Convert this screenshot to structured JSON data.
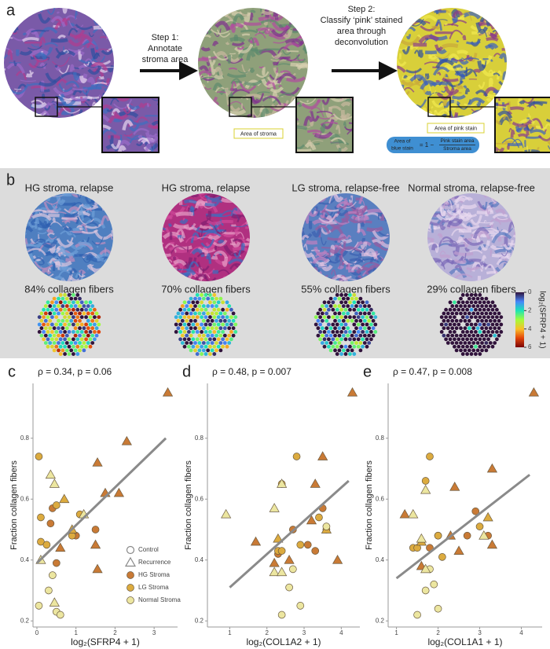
{
  "panel_a": {
    "label": "a",
    "step1": [
      "Step 1:",
      "Annotate",
      "stroma area"
    ],
    "step2": [
      "Step 2:",
      "Classify ‘pink’ stained",
      "area through",
      "deconvolution"
    ],
    "stroma_label": "Area of stroma",
    "pink_label": "Area of pink stain",
    "formula": {
      "lhs": [
        "Area of",
        "blue stain"
      ],
      "eq": "= 1 −",
      "numerator": "Pink stain area",
      "denominator": "Stroma area"
    }
  },
  "panel_b": {
    "label": "b",
    "titles": [
      "HG stroma, relapse",
      "HG stroma, relapse",
      "LG stroma, relapse-free",
      "Normal stroma, relapse-free"
    ],
    "fractions": [
      "84% collagen fibers",
      "70% collagen fibers",
      "55% collagen fibers",
      "29% collagen fibers"
    ],
    "colorbar": {
      "label": "log₂(SFRP4 + 1)",
      "lim": [
        0,
        6
      ],
      "ticks": [
        0,
        2,
        4,
        6
      ]
    }
  },
  "chart_data": [
    {
      "type": "scatter",
      "panel": "c",
      "annotation": "ρ = 0.34, p = 0.06",
      "x_label": "log₂(SFRP4 + 1)",
      "y_label": "Fraction collagen fibers",
      "xlim": [
        -0.1,
        3.6
      ],
      "xticks": [
        0,
        1,
        2,
        3
      ],
      "ylim": [
        0.18,
        0.98
      ],
      "yticks": [
        0.2,
        0.4,
        0.6,
        0.8
      ],
      "legend": true,
      "marker_legend": [
        {
          "name": "Control",
          "marker": "circle"
        },
        {
          "name": "Recurrence",
          "marker": "triangle"
        }
      ],
      "series": [
        {
          "name": "HG Stroma",
          "color": "#c97a35",
          "x": [
            0.4,
            0.35,
            0.5,
            1.0,
            1.5,
            3.35,
            2.3,
            1.55,
            1.75,
            2.1,
            1.5,
            1.55,
            0.6
          ],
          "y": [
            0.57,
            0.52,
            0.39,
            0.48,
            0.5,
            0.95,
            0.79,
            0.72,
            0.62,
            0.62,
            0.45,
            0.37,
            0.44
          ],
          "markers": [
            "circle",
            "circle",
            "circle",
            "circle",
            "circle",
            "triangle",
            "triangle",
            "triangle",
            "triangle",
            "triangle",
            "triangle",
            "triangle",
            "triangle"
          ]
        },
        {
          "name": "LG Stroma",
          "color": "#dcab3f",
          "x": [
            0.05,
            0.1,
            0.1,
            0.5,
            0.25,
            1.1,
            0.9,
            0.7,
            0.9
          ],
          "y": [
            0.74,
            0.54,
            0.46,
            0.58,
            0.45,
            0.55,
            0.48,
            0.6,
            0.5
          ],
          "markers": [
            "circle",
            "circle",
            "circle",
            "circle",
            "circle",
            "circle",
            "circle",
            "triangle",
            "triangle"
          ]
        },
        {
          "name": "Normal Stroma",
          "color": "#ece6a0",
          "x": [
            0.05,
            0.3,
            0.4,
            0.5,
            0.6,
            0.35,
            0.45,
            0.1,
            0.45,
            1.2
          ],
          "y": [
            0.25,
            0.3,
            0.35,
            0.23,
            0.22,
            0.68,
            0.65,
            0.4,
            0.26,
            0.55
          ],
          "markers": [
            "circle",
            "circle",
            "circle",
            "circle",
            "circle",
            "triangle",
            "triangle",
            "triangle",
            "triangle",
            "triangle"
          ]
        }
      ],
      "fit_line": {
        "x": [
          0,
          3.3
        ],
        "y": [
          0.39,
          0.8
        ],
        "color": "#8a8a8a"
      }
    },
    {
      "type": "scatter",
      "panel": "d",
      "annotation": "ρ = 0.48, p = 0.007",
      "x_label": "log₂(COL1A2 + 1)",
      "y_label": "Fraction collagen fibers",
      "xlim": [
        0.4,
        4.5
      ],
      "xticks": [
        1,
        2,
        3,
        4
      ],
      "ylim": [
        0.18,
        0.98
      ],
      "yticks": [
        0.2,
        0.4,
        0.6,
        0.8
      ],
      "legend": false,
      "series": [
        {
          "color": "#c97a35",
          "x": [
            2.7,
            3.1,
            3.5,
            3.3,
            2.3,
            4.3,
            3.5,
            3.3,
            3.2,
            1.7,
            2.6,
            3.9,
            2.2
          ],
          "y": [
            0.5,
            0.45,
            0.57,
            0.43,
            0.42,
            0.95,
            0.74,
            0.65,
            0.53,
            0.46,
            0.4,
            0.4,
            0.39
          ],
          "markers": [
            "circle",
            "circle",
            "circle",
            "circle",
            "circle",
            "triangle",
            "triangle",
            "triangle",
            "triangle",
            "triangle",
            "triangle",
            "triangle",
            "triangle"
          ]
        },
        {
          "color": "#dcab3f",
          "x": [
            2.8,
            2.4,
            2.3,
            2.4,
            3.4,
            3.6,
            2.9,
            3.6,
            2.3
          ],
          "y": [
            0.74,
            0.65,
            0.43,
            0.43,
            0.54,
            0.5,
            0.45,
            0.5,
            0.47
          ],
          "markers": [
            "circle",
            "circle",
            "circle",
            "circle",
            "circle",
            "circle",
            "circle",
            "triangle",
            "triangle"
          ]
        },
        {
          "color": "#ece6a0",
          "x": [
            2.9,
            2.4,
            2.6,
            3.6,
            2.7,
            2.4,
            2.2,
            0.9,
            2.2,
            2.4
          ],
          "y": [
            0.25,
            0.22,
            0.31,
            0.51,
            0.37,
            0.65,
            0.57,
            0.55,
            0.36,
            0.36
          ],
          "markers": [
            "circle",
            "circle",
            "circle",
            "circle",
            "circle",
            "triangle",
            "triangle",
            "triangle",
            "triangle",
            "triangle"
          ]
        }
      ],
      "fit_line": {
        "x": [
          1.0,
          4.2
        ],
        "y": [
          0.31,
          0.66
        ],
        "color": "#8a8a8a"
      }
    },
    {
      "type": "scatter",
      "panel": "e",
      "annotation": "ρ = 0.47, p = 0.008",
      "x_label": "log₂(COL1A1 + 1)",
      "y_label": "Fraction collagen fibers",
      "xlim": [
        0.8,
        4.5
      ],
      "xticks": [
        1,
        2,
        3,
        4
      ],
      "ylim": [
        0.18,
        0.98
      ],
      "yticks": [
        0.2,
        0.4,
        0.6,
        0.8
      ],
      "legend": false,
      "series": [
        {
          "color": "#c97a35",
          "x": [
            2.0,
            2.9,
            2.7,
            3.2,
            1.8,
            4.3,
            3.3,
            2.4,
            2.3,
            1.2,
            1.6,
            3.3,
            2.5
          ],
          "y": [
            0.48,
            0.56,
            0.48,
            0.48,
            0.44,
            0.95,
            0.7,
            0.64,
            0.48,
            0.55,
            0.38,
            0.45,
            0.43
          ],
          "markers": [
            "circle",
            "circle",
            "circle",
            "circle",
            "circle",
            "triangle",
            "triangle",
            "triangle",
            "triangle",
            "triangle",
            "triangle",
            "triangle",
            "triangle"
          ]
        },
        {
          "color": "#dcab3f",
          "x": [
            1.8,
            1.7,
            1.4,
            1.5,
            2.0,
            3.0,
            2.1,
            3.2,
            1.6
          ],
          "y": [
            0.74,
            0.66,
            0.44,
            0.44,
            0.48,
            0.51,
            0.41,
            0.54,
            0.46
          ],
          "markers": [
            "circle",
            "circle",
            "circle",
            "circle",
            "circle",
            "circle",
            "circle",
            "triangle",
            "triangle"
          ]
        },
        {
          "color": "#ece6a0",
          "x": [
            2.0,
            1.5,
            1.7,
            1.9,
            1.8,
            1.7,
            1.4,
            1.6,
            1.7,
            3.1
          ],
          "y": [
            0.24,
            0.22,
            0.3,
            0.32,
            0.37,
            0.63,
            0.55,
            0.47,
            0.37,
            0.48
          ],
          "markers": [
            "circle",
            "circle",
            "circle",
            "circle",
            "circle",
            "triangle",
            "triangle",
            "triangle",
            "triangle",
            "triangle"
          ]
        }
      ],
      "fit_line": {
        "x": [
          1.0,
          4.2
        ],
        "y": [
          0.34,
          0.68
        ],
        "color": "#8a8a8a"
      }
    }
  ]
}
